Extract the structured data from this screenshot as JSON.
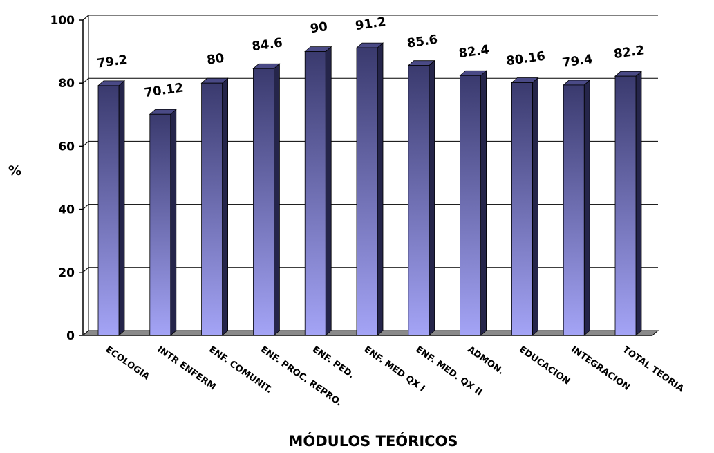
{
  "chart_data": {
    "type": "bar",
    "title": "",
    "xlabel": "MÓDULOS TEÓRICOS",
    "ylabel": "%",
    "ylim": [
      0,
      100
    ],
    "yticks": [
      0,
      20,
      40,
      60,
      80,
      100
    ],
    "grid": true,
    "categories": [
      "ECOLOGIA",
      "INTR ENFERM",
      "ENF. COMUNIT.",
      "ENF. PROC. REPRO.",
      "ENF. PED.",
      "ENF. MED QX I",
      "ENF. MED. QX II",
      "ADMON.",
      "EDUCACION",
      "INTEGRACION",
      "TOTAL TEORIA"
    ],
    "values": [
      79.2,
      70.12,
      80,
      84.6,
      90,
      91.2,
      85.6,
      82.4,
      80.16,
      79.4,
      82.2
    ],
    "data_labels": [
      "79.2",
      "70.12",
      "80",
      "84.6",
      "90",
      "91.2",
      "85.6",
      "82.4",
      "80.16",
      "79.4",
      "82.2"
    ],
    "colors": {
      "bar_light": "#a4a4f6",
      "bar_dark": "#3a3a6e",
      "bar_side": "#25254a",
      "bar_top": "#4a4a86",
      "floor": "#808080"
    }
  }
}
